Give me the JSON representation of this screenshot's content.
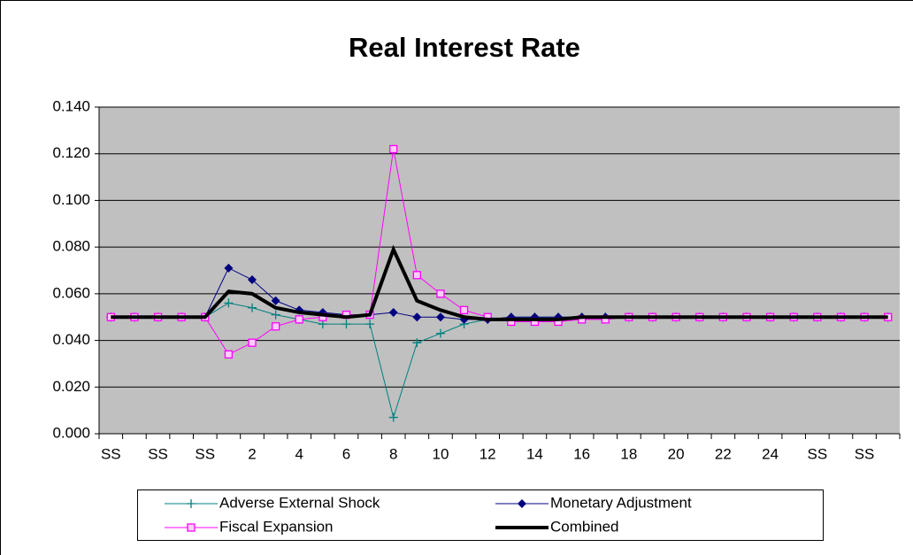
{
  "chart_data": {
    "type": "line",
    "title": "Real Interest Rate",
    "categories": [
      "SS",
      null,
      "SS",
      null,
      "SS",
      null,
      "2",
      null,
      "4",
      null,
      "6",
      null,
      "8",
      null,
      "10",
      null,
      "12",
      null,
      "14",
      null,
      "16",
      null,
      "18",
      null,
      "20",
      null,
      "22",
      null,
      "24",
      null,
      "SS",
      null,
      "SS",
      null
    ],
    "series": [
      {
        "name": "Adverse External Shock",
        "color": "#008080",
        "marker": "plus",
        "width": 1,
        "values": [
          0.05,
          0.05,
          0.05,
          0.05,
          0.05,
          0.056,
          0.054,
          0.051,
          0.049,
          0.047,
          0.047,
          0.047,
          0.007,
          0.039,
          0.043,
          0.047,
          0.049,
          0.05,
          0.05,
          0.05,
          0.05,
          0.05,
          0.05,
          0.05,
          0.05,
          0.05,
          0.05,
          0.05,
          0.05,
          0.05,
          0.05,
          0.05,
          0.05,
          0.05
        ]
      },
      {
        "name": "Monetary Adjustment",
        "color": "#000080",
        "marker": "diamond",
        "width": 1,
        "values": [
          0.05,
          0.05,
          0.05,
          0.05,
          0.05,
          0.071,
          0.066,
          0.057,
          0.053,
          0.052,
          0.051,
          0.051,
          0.052,
          0.05,
          0.05,
          0.049,
          0.049,
          0.05,
          0.05,
          0.05,
          0.05,
          0.05,
          0.05,
          0.05,
          0.05,
          0.05,
          0.05,
          0.05,
          0.05,
          0.05,
          0.05,
          0.05,
          0.05,
          0.05
        ]
      },
      {
        "name": "Fiscal Expansion",
        "color": "#ff00ff",
        "marker": "square",
        "width": 1,
        "values": [
          0.05,
          0.05,
          0.05,
          0.05,
          0.05,
          0.034,
          0.039,
          0.046,
          0.049,
          0.05,
          0.051,
          0.051,
          0.122,
          0.068,
          0.06,
          0.053,
          0.05,
          0.048,
          0.048,
          0.048,
          0.049,
          0.049,
          0.05,
          0.05,
          0.05,
          0.05,
          0.05,
          0.05,
          0.05,
          0.05,
          0.05,
          0.05,
          0.05,
          0.05
        ]
      },
      {
        "name": "Combined",
        "color": "#000000",
        "marker": "none",
        "width": 4,
        "values": [
          0.05,
          0.05,
          0.05,
          0.05,
          0.05,
          0.061,
          0.06,
          0.054,
          0.052,
          0.051,
          0.05,
          0.051,
          0.079,
          0.057,
          0.053,
          0.05,
          0.049,
          0.049,
          0.049,
          0.049,
          0.05,
          0.05,
          0.05,
          0.05,
          0.05,
          0.05,
          0.05,
          0.05,
          0.05,
          0.05,
          0.05,
          0.05,
          0.05,
          0.05
        ]
      }
    ],
    "ylim": [
      0,
      0.14
    ],
    "yticks": [
      {
        "value": 0,
        "label": "0.000"
      },
      {
        "value": 0.02,
        "label": "0.020"
      },
      {
        "value": 0.04,
        "label": "0.040"
      },
      {
        "value": 0.06,
        "label": "0.060"
      },
      {
        "value": 0.08,
        "label": "0.080"
      },
      {
        "value": 0.1,
        "label": "0.100"
      },
      {
        "value": 0.12,
        "label": "0.120"
      },
      {
        "value": 0.14,
        "label": "0.140"
      }
    ],
    "grid": true,
    "legend": "bottom"
  }
}
